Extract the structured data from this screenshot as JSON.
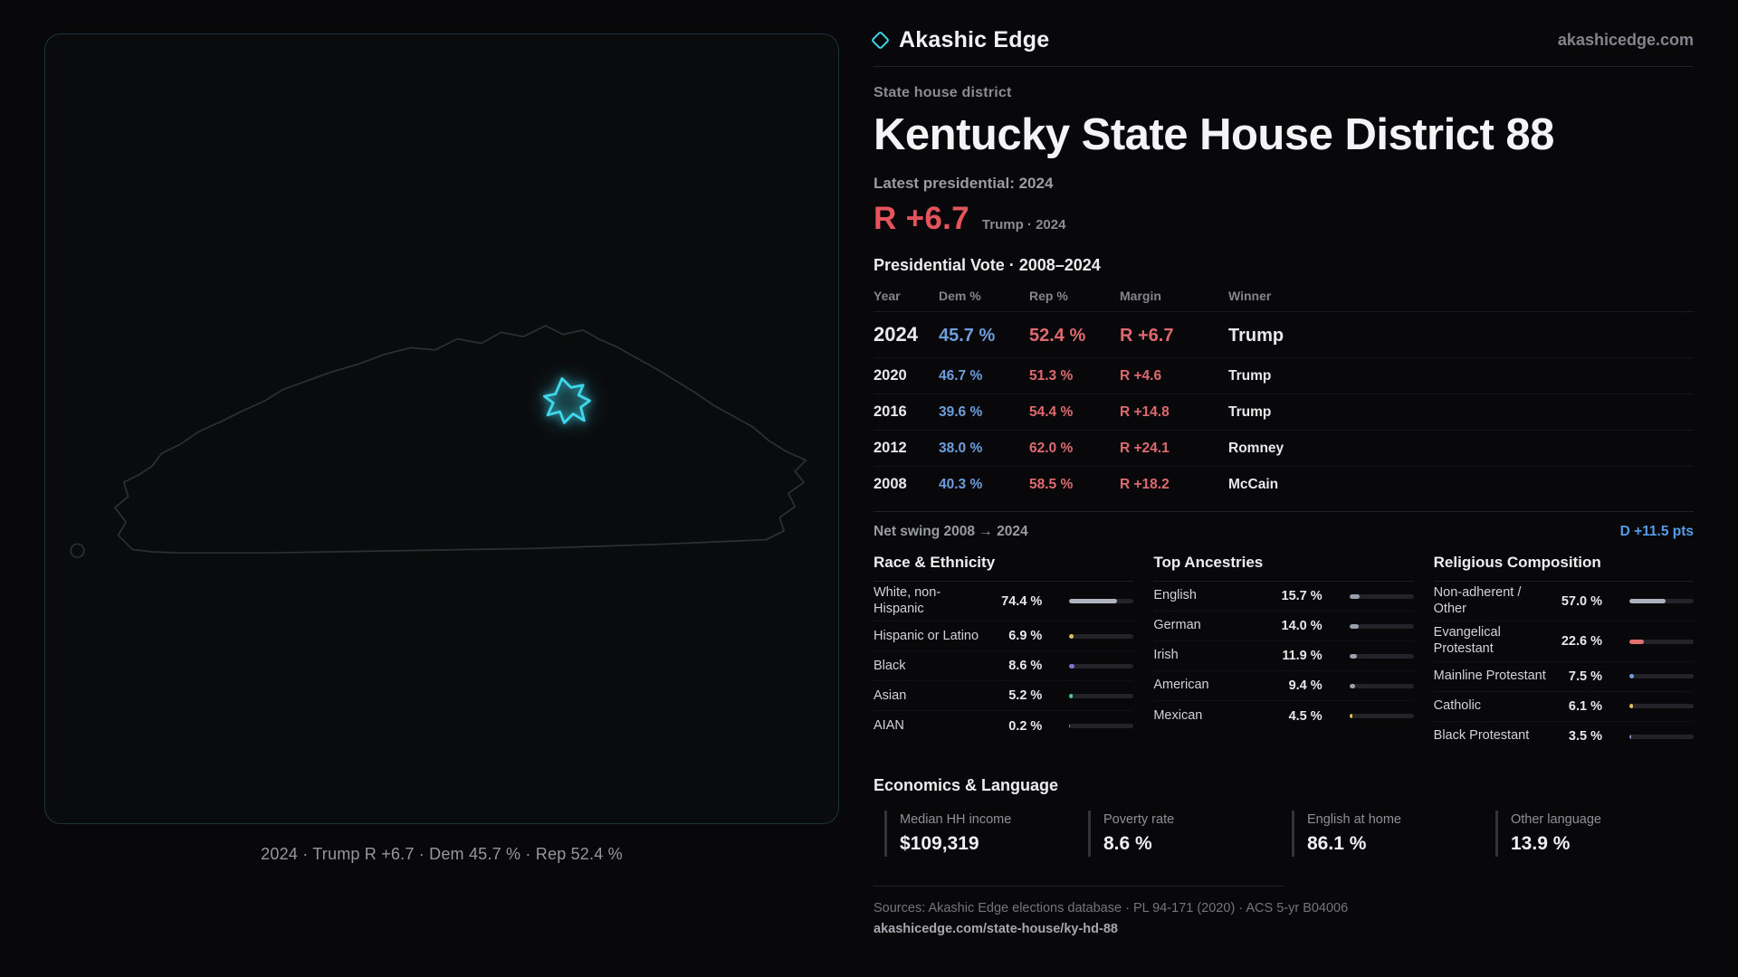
{
  "colors": {
    "accent": "#3fd6ea",
    "dem_blue": "#6d9ddc",
    "rep_red": "#de6a6f",
    "margin_red": "#e4545c",
    "swing_blue": "#569be6"
  },
  "brand": {
    "name": "Akashic Edge",
    "domain": "akashicedge.com"
  },
  "district": {
    "type_label": "State house district",
    "title": "Kentucky State House District 88",
    "latest_label": "Latest presidential: 2024",
    "margin_value": "R +6.7",
    "margin_context": "Trump · 2024"
  },
  "map": {
    "caption": "2024 · Trump  R +6.7 · Dem 45.7 % · Rep 52.4 %"
  },
  "vote_table": {
    "title": "Presidential Vote · 2008–2024",
    "columns": [
      "Year",
      "Dem %",
      "Rep %",
      "Margin",
      "Winner"
    ],
    "rows": [
      {
        "year": "2024",
        "dem": "45.7 %",
        "rep": "52.4 %",
        "margin": "R +6.7",
        "winner": "Trump"
      },
      {
        "year": "2020",
        "dem": "46.7 %",
        "rep": "51.3 %",
        "margin": "R +4.6",
        "winner": "Trump"
      },
      {
        "year": "2016",
        "dem": "39.6 %",
        "rep": "54.4 %",
        "margin": "R +14.8",
        "winner": "Trump"
      },
      {
        "year": "2012",
        "dem": "38.0 %",
        "rep": "62.0 %",
        "margin": "R +24.1",
        "winner": "Romney"
      },
      {
        "year": "2008",
        "dem": "40.3 %",
        "rep": "58.5 %",
        "margin": "R +18.2",
        "winner": "McCain"
      }
    ]
  },
  "net_swing": {
    "label": "Net swing 2008 → 2024",
    "value": "D +11.5 pts"
  },
  "demographics": [
    {
      "title": "Race & Ethnicity",
      "rows": [
        {
          "label": "White, non-\nHispanic",
          "value": "74.4 %",
          "pct": 74.4,
          "color": "#b0b4bf"
        },
        {
          "label": "Hispanic or Latino",
          "value": "6.9 %",
          "pct": 6.9,
          "color": "#e2bd5c"
        },
        {
          "label": "Black",
          "value": "8.6 %",
          "pct": 8.6,
          "color": "#7e76d6"
        },
        {
          "label": "Asian",
          "value": "5.2 %",
          "pct": 5.2,
          "color": "#4fc98e"
        },
        {
          "label": "AIAN",
          "value": "0.2 %",
          "pct": 0.2,
          "color": "#9aa0ab"
        }
      ]
    },
    {
      "title": "Top Ancestries",
      "rows": [
        {
          "label": "English",
          "value": "15.7 %",
          "pct": 15.7,
          "color": "#9aa0ab"
        },
        {
          "label": "German",
          "value": "14.0 %",
          "pct": 14.0,
          "color": "#9aa0ab"
        },
        {
          "label": "Irish",
          "value": "11.9 %",
          "pct": 11.9,
          "color": "#9aa0ab"
        },
        {
          "label": "American",
          "value": "9.4 %",
          "pct": 9.4,
          "color": "#9aa0ab"
        },
        {
          "label": "Mexican",
          "value": "4.5 %",
          "pct": 4.5,
          "color": "#e2bd5c"
        }
      ]
    },
    {
      "title": "Religious Composition",
      "rows": [
        {
          "label": "Non-adherent /\nOther",
          "value": "57.0 %",
          "pct": 57.0,
          "color": "#aeb2bc"
        },
        {
          "label": "Evangelical\nProtestant",
          "value": "22.6 %",
          "pct": 22.6,
          "color": "#e0716e"
        },
        {
          "label": "Mainline Protestant",
          "value": "7.5 %",
          "pct": 7.5,
          "color": "#6f9edb"
        },
        {
          "label": "Catholic",
          "value": "6.1 %",
          "pct": 6.1,
          "color": "#e2bd5c"
        },
        {
          "label": "Black Protestant",
          "value": "3.5 %",
          "pct": 3.5,
          "color": "#8e87cf"
        }
      ]
    }
  ],
  "economics": {
    "title": "Economics & Language",
    "stats": [
      {
        "label": "Median HH income",
        "value": "$109,319"
      },
      {
        "label": "Poverty rate",
        "value": "8.6 %"
      },
      {
        "label": "English at home",
        "value": "86.1 %"
      },
      {
        "label": "Other language",
        "value": "13.9 %"
      }
    ]
  },
  "footer": {
    "sources": "Sources: Akashic Edge elections database · PL 94-171 (2020) · ACS 5-yr B04006",
    "permalink": "akashicedge.com/state-house/ky-hd-88"
  }
}
